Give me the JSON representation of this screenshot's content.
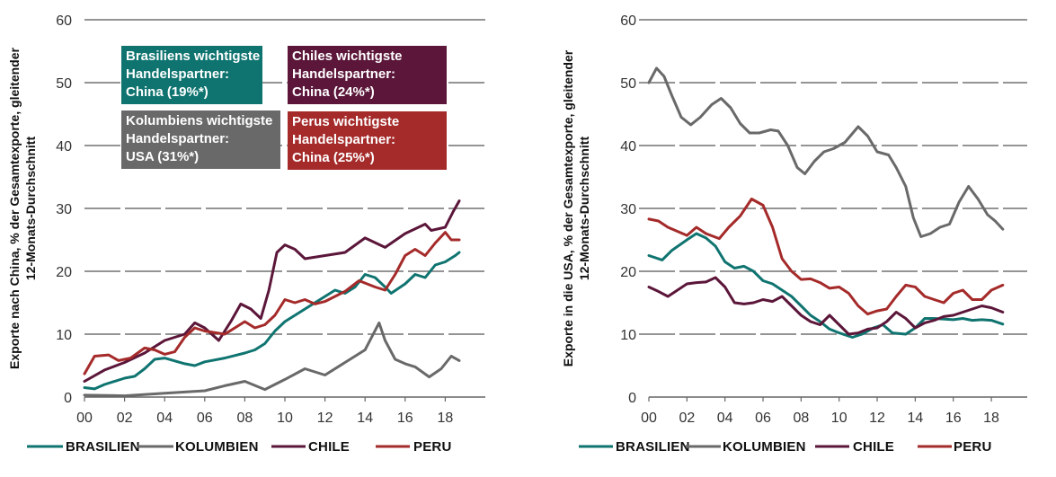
{
  "colors": {
    "brasilien": "#0f7470",
    "kolumbien": "#696969",
    "chile": "#5b1639",
    "peru": "#a52a2a",
    "grid": "#555555"
  },
  "chart_data": [
    {
      "type": "line",
      "title": "",
      "ylabel": [
        "Exporte nach China, % der Gesamtexporte, gleitender",
        "12-Monats-Durchschnitt"
      ],
      "xlabel": "",
      "xlim": [
        2000,
        2020
      ],
      "ylim": [
        0,
        60
      ],
      "yticks": [
        0,
        10,
        20,
        30,
        40,
        50,
        60
      ],
      "xticks": [
        2000,
        2002,
        2004,
        2006,
        2008,
        2010,
        2012,
        2014,
        2016,
        2018
      ],
      "xtick_labels": [
        "00",
        "02",
        "04",
        "06",
        "08",
        "10",
        "12",
        "14",
        "16",
        "18"
      ],
      "grid": true,
      "legend": "bottom",
      "annotations": [
        {
          "series": "brasilien",
          "lines": [
            "Brasiliens wichtigste",
            "Handelspartner:",
            "China (19%*)"
          ]
        },
        {
          "series": "chile",
          "lines": [
            "Chiles wichtigste",
            "Handelspartner:",
            "China (24%*)"
          ]
        },
        {
          "series": "kolumbien",
          "lines": [
            "Kolumbiens wichtigste",
            "Handelspartner:",
            "USA (31%*)"
          ]
        },
        {
          "series": "peru",
          "lines": [
            "Perus wichtigste",
            "Handelspartner:",
            "China (25%*)"
          ]
        }
      ],
      "series": [
        {
          "key": "brasilien",
          "name": "BRASILIEN",
          "x": [
            2000,
            2000.5,
            2001,
            2002,
            2002.5,
            2003,
            2003.5,
            2004,
            2005,
            2005.5,
            2006,
            2007,
            2008,
            2008.5,
            2009,
            2009.5,
            2010,
            2011,
            2012,
            2012.5,
            2013,
            2013.5,
            2014,
            2014.5,
            2015,
            2015.3,
            2016,
            2016.5,
            2017,
            2017.5,
            2018,
            2018.5,
            2018.7
          ],
          "y": [
            1.5,
            1.3,
            2.0,
            3.0,
            3.3,
            4.5,
            6.0,
            6.2,
            5.3,
            5.0,
            5.6,
            6.2,
            7.0,
            7.5,
            8.5,
            10.5,
            12.0,
            14.0,
            16.0,
            17.0,
            16.5,
            17.5,
            19.5,
            19.0,
            17.5,
            16.5,
            18.0,
            19.5,
            19.0,
            21.0,
            21.5,
            22.5,
            23.0
          ]
        },
        {
          "key": "kolumbien",
          "name": "KOLUMBIEN",
          "x": [
            2000,
            2002,
            2004,
            2006,
            2007,
            2008,
            2009,
            2010,
            2011,
            2012,
            2013,
            2014,
            2014.7,
            2015,
            2015.5,
            2016,
            2016.5,
            2017.2,
            2017.8,
            2018.3,
            2018.7
          ],
          "y": [
            0.3,
            0.2,
            0.6,
            1.0,
            1.8,
            2.5,
            1.2,
            2.8,
            4.5,
            3.5,
            5.5,
            7.5,
            11.8,
            9.0,
            6.0,
            5.3,
            4.8,
            3.2,
            4.5,
            6.5,
            5.8
          ]
        },
        {
          "key": "chile",
          "name": "CHILE",
          "x": [
            2000,
            2001,
            2002,
            2003,
            2004,
            2005,
            2005.5,
            2006,
            2006.7,
            2007.3,
            2007.8,
            2008.3,
            2008.8,
            2009.2,
            2009.6,
            2010,
            2010.5,
            2011,
            2012,
            2013,
            2014,
            2015,
            2016,
            2017,
            2017.3,
            2018,
            2018.4,
            2018.7
          ],
          "y": [
            2.5,
            4.3,
            5.5,
            7.0,
            9.0,
            10.0,
            11.8,
            11.0,
            9.0,
            12.0,
            14.8,
            14.0,
            12.5,
            17.0,
            23.0,
            24.2,
            23.5,
            22.0,
            22.5,
            23.0,
            25.3,
            23.8,
            26.0,
            27.5,
            26.5,
            27.0,
            29.5,
            31.2
          ]
        },
        {
          "key": "peru",
          "name": "PERU",
          "x": [
            2000,
            2000.5,
            2001.2,
            2001.7,
            2002.3,
            2003,
            2003.5,
            2004,
            2004.5,
            2005,
            2005.5,
            2006,
            2007,
            2007.5,
            2008,
            2008.5,
            2009,
            2009.5,
            2010,
            2010.5,
            2011,
            2011.5,
            2012,
            2013,
            2013.7,
            2014.5,
            2015,
            2015.5,
            2016,
            2016.5,
            2017,
            2017.5,
            2018,
            2018.3,
            2018.7
          ],
          "y": [
            3.7,
            6.5,
            6.7,
            5.8,
            6.2,
            7.8,
            7.5,
            6.8,
            7.2,
            9.5,
            11.0,
            10.5,
            10.0,
            11.0,
            12.0,
            11.0,
            11.5,
            13.0,
            15.5,
            15.0,
            15.5,
            14.8,
            15.2,
            16.8,
            18.5,
            17.5,
            17.0,
            19.5,
            22.5,
            23.5,
            22.5,
            24.5,
            26.2,
            25.0,
            25.0
          ]
        }
      ]
    },
    {
      "type": "line",
      "title": "",
      "ylabel": [
        "Exporte in die USA, % der Gesamtexporte, gleitender",
        "12-Monats-Durchschnitt"
      ],
      "xlabel": "",
      "xlim": [
        2000,
        2020
      ],
      "ylim": [
        0,
        60
      ],
      "yticks": [
        0,
        10,
        20,
        30,
        40,
        50,
        60
      ],
      "xticks": [
        2000,
        2002,
        2004,
        2006,
        2008,
        2010,
        2012,
        2014,
        2016,
        2018
      ],
      "xtick_labels": [
        "00",
        "02",
        "04",
        "06",
        "08",
        "10",
        "12",
        "14",
        "16",
        "18"
      ],
      "grid": true,
      "legend": "bottom",
      "series": [
        {
          "key": "brasilien",
          "name": "BRASILIEN",
          "x": [
            2000,
            2000.7,
            2001.2,
            2002,
            2002.5,
            2003,
            2003.5,
            2004,
            2004.5,
            2005,
            2005.5,
            2006,
            2006.5,
            2007,
            2007.5,
            2008,
            2008.5,
            2009,
            2009.5,
            2010,
            2010.7,
            2011.2,
            2011.8,
            2012.3,
            2012.8,
            2013.5,
            2014,
            2014.5,
            2015,
            2016,
            2016.5,
            2017,
            2017.5,
            2018,
            2018.6
          ],
          "y": [
            22.5,
            21.8,
            23.3,
            25.0,
            26.0,
            25.3,
            24.0,
            21.5,
            20.5,
            20.8,
            20.0,
            18.5,
            18.0,
            17.0,
            16.0,
            14.5,
            13.0,
            12.0,
            10.8,
            10.2,
            9.5,
            10.0,
            11.0,
            11.5,
            10.2,
            10.0,
            11.0,
            12.5,
            12.5,
            12.3,
            12.5,
            12.2,
            12.3,
            12.2,
            11.6
          ]
        },
        {
          "key": "kolumbien",
          "name": "KOLUMBIEN",
          "x": [
            2000,
            2000.4,
            2000.8,
            2001.2,
            2001.7,
            2002.2,
            2002.7,
            2003.3,
            2003.8,
            2004.3,
            2004.8,
            2005.3,
            2005.8,
            2006.4,
            2006.8,
            2007.3,
            2007.8,
            2008.2,
            2008.7,
            2009.2,
            2009.7,
            2010.3,
            2011,
            2011.5,
            2012,
            2012.6,
            2013,
            2013.5,
            2013.9,
            2014.3,
            2014.8,
            2015.3,
            2015.8,
            2016.3,
            2016.8,
            2017.3,
            2017.8,
            2018.2,
            2018.6
          ],
          "y": [
            50.0,
            52.3,
            51.0,
            48.0,
            44.5,
            43.3,
            44.5,
            46.5,
            47.5,
            46.0,
            43.5,
            42.0,
            42.0,
            42.5,
            42.3,
            40.0,
            36.5,
            35.5,
            37.5,
            39.0,
            39.5,
            40.5,
            43.0,
            41.5,
            39.0,
            38.5,
            36.5,
            33.5,
            28.5,
            25.5,
            26.0,
            27.0,
            27.5,
            31.0,
            33.5,
            31.5,
            29.0,
            28.0,
            26.7
          ]
        },
        {
          "key": "chile",
          "name": "CHILE",
          "x": [
            2000,
            2000.5,
            2001,
            2001.5,
            2002,
            2002.5,
            2003,
            2003.5,
            2004,
            2004.5,
            2005,
            2005.5,
            2006,
            2006.5,
            2007,
            2007.5,
            2008,
            2008.5,
            2009,
            2009.5,
            2010,
            2010.5,
            2011,
            2011.5,
            2012,
            2012.5,
            2013,
            2013.5,
            2014,
            2014.5,
            2015,
            2015.5,
            2016,
            2016.5,
            2017,
            2017.5,
            2018,
            2018.6
          ],
          "y": [
            17.5,
            16.8,
            16.0,
            17.0,
            18.0,
            18.2,
            18.3,
            19.0,
            17.5,
            15.0,
            14.8,
            15.0,
            15.5,
            15.2,
            16.0,
            14.5,
            13.0,
            12.0,
            11.5,
            13.0,
            11.5,
            10.0,
            10.2,
            10.8,
            11.0,
            12.0,
            13.5,
            12.5,
            11.0,
            11.8,
            12.2,
            12.8,
            13.0,
            13.5,
            14.0,
            14.5,
            14.2,
            13.5
          ]
        },
        {
          "key": "peru",
          "name": "PERU",
          "x": [
            2000,
            2000.5,
            2001,
            2002,
            2002.5,
            2003,
            2003.7,
            2004.2,
            2004.8,
            2005.4,
            2006,
            2006.5,
            2007,
            2007.5,
            2008,
            2008.5,
            2009,
            2009.5,
            2010,
            2010.5,
            2011,
            2011.5,
            2012,
            2012.5,
            2013,
            2013.5,
            2014,
            2014.5,
            2015,
            2015.5,
            2016,
            2016.5,
            2017,
            2017.5,
            2018,
            2018.6
          ],
          "y": [
            28.3,
            28.0,
            27.0,
            25.7,
            27.0,
            26.0,
            25.2,
            27.0,
            28.8,
            31.5,
            30.5,
            27.0,
            22.0,
            20.0,
            18.7,
            18.8,
            18.2,
            17.3,
            17.5,
            16.5,
            14.5,
            13.2,
            13.7,
            14.0,
            16.0,
            17.8,
            17.5,
            16.0,
            15.5,
            15.0,
            16.5,
            17.0,
            15.5,
            15.5,
            17.0,
            17.8
          ]
        }
      ]
    }
  ],
  "legend": [
    {
      "key": "brasilien",
      "label": "BRASILIEN"
    },
    {
      "key": "kolumbien",
      "label": "KOLUMBIEN"
    },
    {
      "key": "chile",
      "label": "CHILE"
    },
    {
      "key": "peru",
      "label": "PERU"
    }
  ]
}
